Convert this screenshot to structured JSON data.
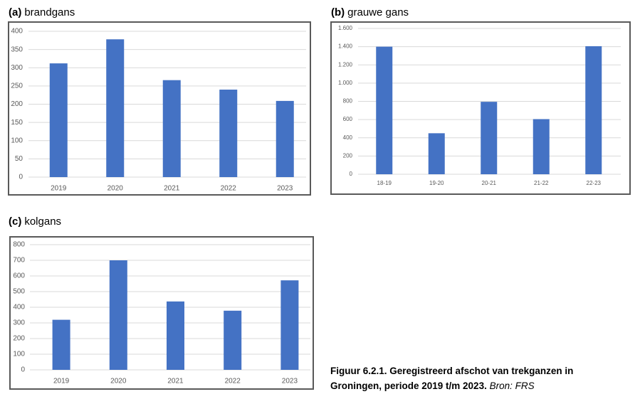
{
  "chart_data": [
    {
      "type": "bar",
      "panel": "(a)",
      "title": "brandgans",
      "categories": [
        "2019",
        "2020",
        "2021",
        "2022",
        "2023"
      ],
      "values": [
        312,
        378,
        266,
        240,
        209
      ],
      "color": "#4472c4",
      "ylim": [
        0,
        400
      ],
      "yticks": [
        0,
        50,
        100,
        150,
        200,
        250,
        300,
        350,
        400
      ],
      "grid": true
    },
    {
      "type": "bar",
      "panel": "(b)",
      "title": "grauwe gans",
      "categories": [
        "18-19",
        "19-20",
        "20-21",
        "21-22",
        "22-23"
      ],
      "values": [
        1400,
        450,
        795,
        605,
        1405
      ],
      "color": "#4472c4",
      "ylim": [
        0,
        1600
      ],
      "yticks": [
        0,
        200,
        400,
        600,
        800,
        {
          "value": 1000,
          "label": "1.000"
        },
        {
          "value": 1200,
          "label": "1.200"
        },
        {
          "value": 1400,
          "label": "1.400"
        },
        {
          "value": 1600,
          "label": "1.600"
        }
      ],
      "grid": true
    },
    {
      "type": "bar",
      "panel": "(c)",
      "title": "kolgans",
      "categories": [
        "2019",
        "2020",
        "2021",
        "2022",
        "2023"
      ],
      "values": [
        320,
        700,
        437,
        378,
        572
      ],
      "color": "#4472c4",
      "ylim": [
        0,
        800
      ],
      "yticks": [
        0,
        100,
        200,
        300,
        400,
        500,
        600,
        700,
        800
      ],
      "grid": true
    }
  ],
  "caption": {
    "text": "Figuur 6.2.1. Geregistreerd afschot van trekganzen in Groningen, periode 2019 t/m 2023.",
    "source": "Bron: FRS"
  }
}
